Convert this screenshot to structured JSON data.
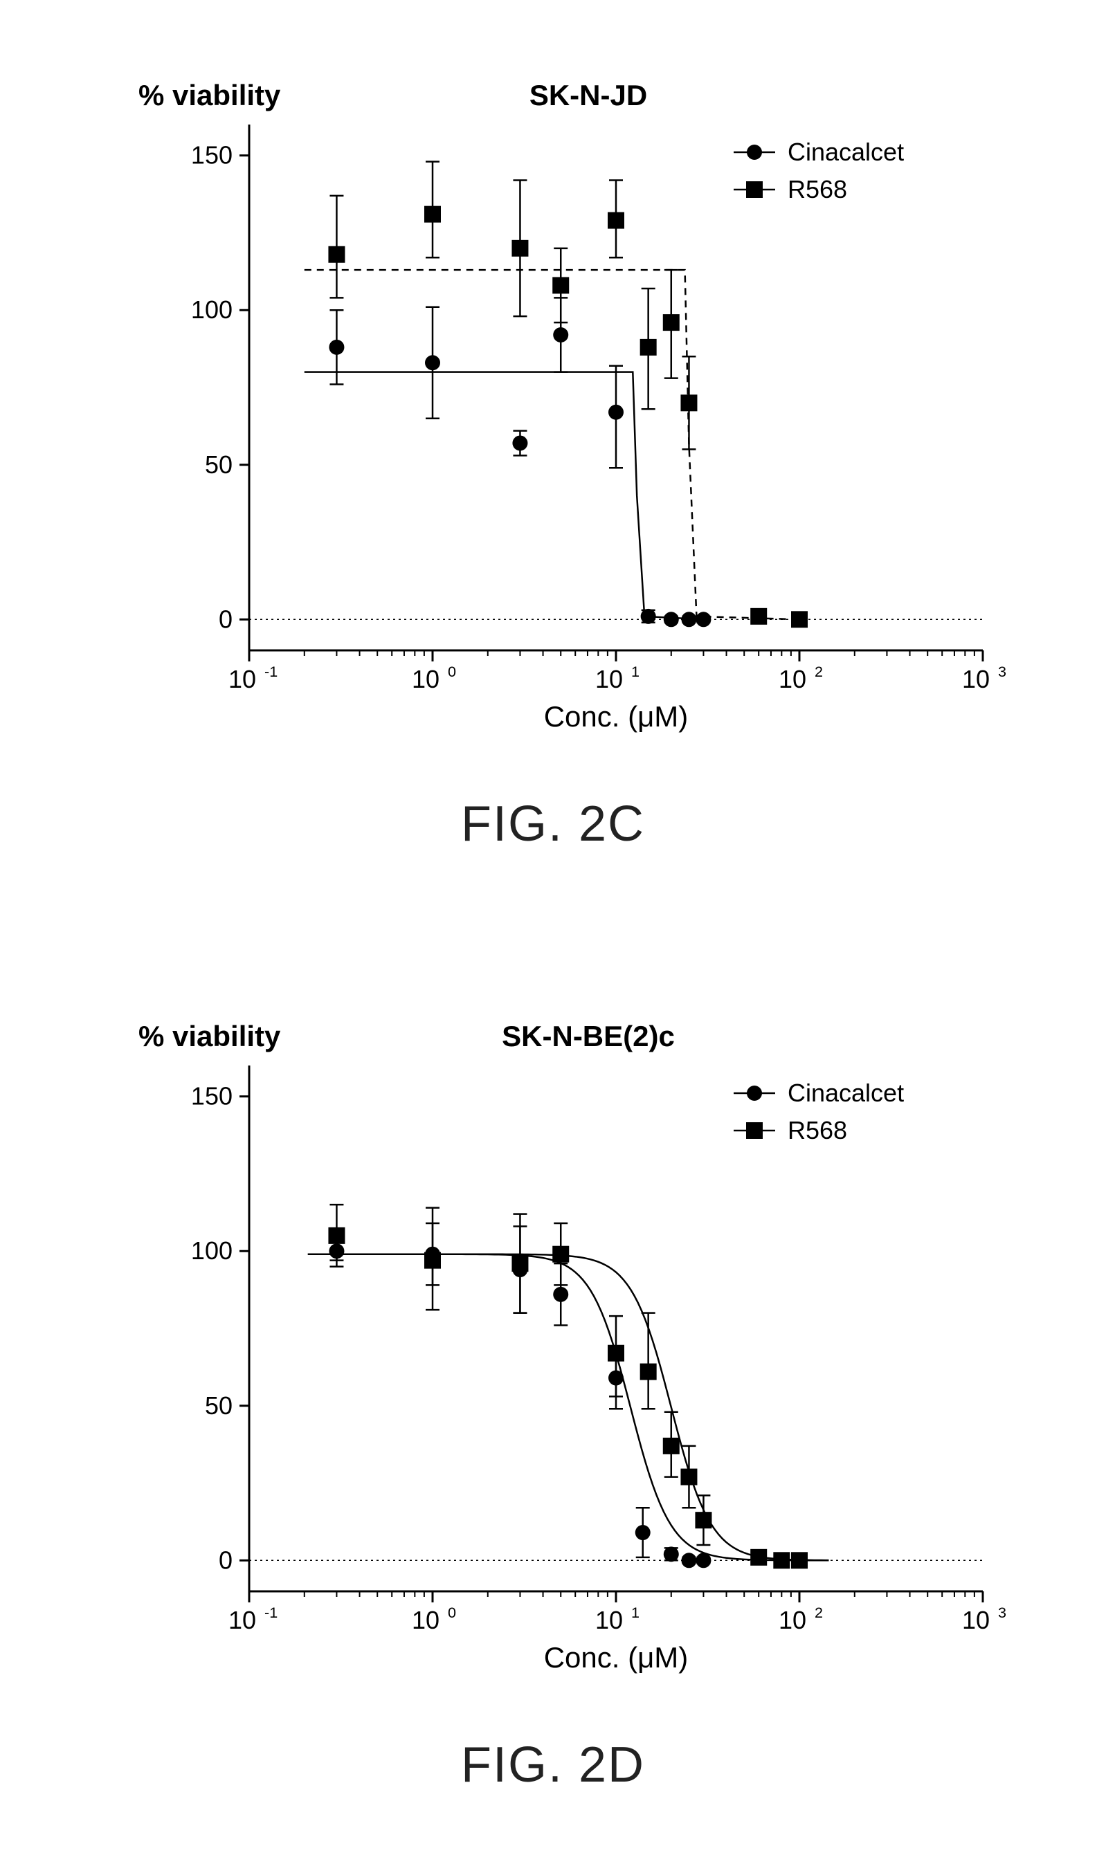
{
  "common": {
    "legend": {
      "series1_label": "Cinacalcet",
      "series2_label": "R568",
      "series1_marker": "circle",
      "series2_marker": "square",
      "text_fontsize": 36,
      "marker_size": 16
    },
    "axes": {
      "xlabel": "Conc. (μM)",
      "ylabel": "% viability",
      "x_scale": "log",
      "xlim": [
        0.1,
        1000
      ],
      "ylim": [
        -10,
        160
      ],
      "ytick_values": [
        0,
        50,
        100,
        150
      ],
      "xtick_exponents": [
        -1,
        0,
        1,
        2,
        3
      ],
      "label_fontsize": 42,
      "tick_fontsize": 36,
      "axis_color": "#000000",
      "background_color": "#ffffff",
      "zeroline_dash": "3,5"
    },
    "marker_fill": "#000000",
    "errorbar_color": "#000000",
    "errorbar_width": 2.5,
    "cap_half_width": 10
  },
  "chartC": {
    "title": "SK-N-JD",
    "fig_caption": "FIG. 2C",
    "cinacalcet": {
      "curve_style": "solid",
      "curve_width": 2.5,
      "plateau": 80,
      "xbreak": 13,
      "points": [
        {
          "x": 0.3,
          "y": 88,
          "el": 12,
          "eu": 12
        },
        {
          "x": 1,
          "y": 83,
          "el": 18,
          "eu": 18
        },
        {
          "x": 3,
          "y": 57,
          "el": 4,
          "eu": 4
        },
        {
          "x": 5,
          "y": 92,
          "el": 12,
          "eu": 12
        },
        {
          "x": 10,
          "y": 67,
          "el": 18,
          "eu": 15
        },
        {
          "x": 15,
          "y": 1,
          "el": 2,
          "eu": 2
        },
        {
          "x": 20,
          "y": 0,
          "el": 1,
          "eu": 1
        },
        {
          "x": 25,
          "y": 0,
          "el": 1,
          "eu": 1
        },
        {
          "x": 30,
          "y": 0,
          "el": 1,
          "eu": 1
        }
      ]
    },
    "r568": {
      "curve_style": "dash",
      "curve_width": 2.5,
      "plateau": 113,
      "xbreak": 25,
      "points": [
        {
          "x": 0.3,
          "y": 118,
          "el": 14,
          "eu": 19
        },
        {
          "x": 1,
          "y": 131,
          "el": 14,
          "eu": 17
        },
        {
          "x": 3,
          "y": 120,
          "el": 22,
          "eu": 22
        },
        {
          "x": 5,
          "y": 108,
          "el": 12,
          "eu": 12
        },
        {
          "x": 10,
          "y": 129,
          "el": 12,
          "eu": 13
        },
        {
          "x": 15,
          "y": 88,
          "el": 20,
          "eu": 19
        },
        {
          "x": 20,
          "y": 96,
          "el": 18,
          "eu": 17
        },
        {
          "x": 25,
          "y": 70,
          "el": 15,
          "eu": 15
        },
        {
          "x": 60,
          "y": 1,
          "el": 2,
          "eu": 2
        },
        {
          "x": 100,
          "y": 0,
          "el": 1,
          "eu": 1
        }
      ]
    }
  },
  "chartD": {
    "title": "SK-N-BE(2)c",
    "fig_caption": "FIG. 2D",
    "cinacalcet": {
      "curve_style": "solid",
      "curve_width": 2.5,
      "plateau": 99,
      "ic50": 12,
      "points": [
        {
          "x": 0.3,
          "y": 100,
          "el": 3,
          "eu": 3
        },
        {
          "x": 1,
          "y": 99,
          "el": 10,
          "eu": 10
        },
        {
          "x": 3,
          "y": 94,
          "el": 14,
          "eu": 14
        },
        {
          "x": 5,
          "y": 86,
          "el": 10,
          "eu": 10
        },
        {
          "x": 10,
          "y": 59,
          "el": 10,
          "eu": 10
        },
        {
          "x": 14,
          "y": 9,
          "el": 8,
          "eu": 8
        },
        {
          "x": 20,
          "y": 2,
          "el": 2,
          "eu": 2
        },
        {
          "x": 25,
          "y": 0,
          "el": 1,
          "eu": 1
        },
        {
          "x": 30,
          "y": 0,
          "el": 1,
          "eu": 1
        }
      ]
    },
    "r568": {
      "curve_style": "solid",
      "curve_width": 2.5,
      "plateau": 99,
      "ic50": 20,
      "points": [
        {
          "x": 0.3,
          "y": 105,
          "el": 10,
          "eu": 10
        },
        {
          "x": 1,
          "y": 97,
          "el": 16,
          "eu": 17
        },
        {
          "x": 3,
          "y": 96,
          "el": 16,
          "eu": 16
        },
        {
          "x": 5,
          "y": 99,
          "el": 10,
          "eu": 10
        },
        {
          "x": 10,
          "y": 67,
          "el": 14,
          "eu": 12
        },
        {
          "x": 15,
          "y": 61,
          "el": 12,
          "eu": 19
        },
        {
          "x": 20,
          "y": 37,
          "el": 10,
          "eu": 11
        },
        {
          "x": 25,
          "y": 27,
          "el": 10,
          "eu": 10
        },
        {
          "x": 30,
          "y": 13,
          "el": 8,
          "eu": 8
        },
        {
          "x": 60,
          "y": 1,
          "el": 2,
          "eu": 2
        },
        {
          "x": 80,
          "y": 0,
          "el": 1,
          "eu": 1
        },
        {
          "x": 100,
          "y": 0,
          "el": 1,
          "eu": 1
        }
      ]
    }
  }
}
